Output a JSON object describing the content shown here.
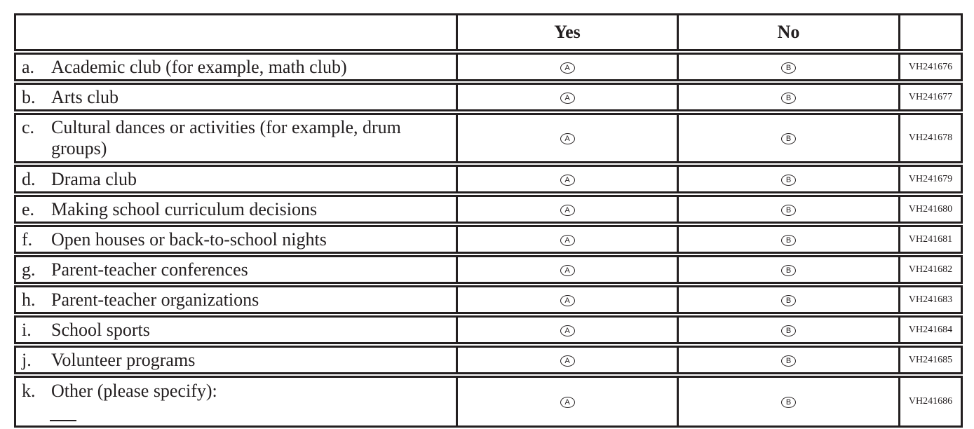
{
  "header": {
    "item": "",
    "yes": "Yes",
    "no": "No",
    "id": ""
  },
  "bubbles": {
    "yes": "A",
    "no": "B"
  },
  "rows": [
    {
      "letter": "a.",
      "label": "Academic club (for example, math club)",
      "id": "VH241676"
    },
    {
      "letter": "b.",
      "label": "Arts club",
      "id": "VH241677"
    },
    {
      "letter": "c.",
      "label": "Cultural dances or activities (for example, drum groups)",
      "id": "VH241678"
    },
    {
      "letter": "d.",
      "label": "Drama club",
      "id": "VH241679"
    },
    {
      "letter": "e.",
      "label": "Making school curriculum decisions",
      "id": "VH241680"
    },
    {
      "letter": "f.",
      "label": "Open houses or back-to-school nights",
      "id": "VH241681"
    },
    {
      "letter": "g.",
      "label": "Parent-teacher conferences",
      "id": "VH241682"
    },
    {
      "letter": "h.",
      "label": "Parent-teacher organizations",
      "id": "VH241683"
    },
    {
      "letter": "i.",
      "label": "School sports",
      "id": "VH241684"
    },
    {
      "letter": "j.",
      "label": "Volunteer programs",
      "id": "VH241685"
    },
    {
      "letter": "k.",
      "label": "Other (please specify):",
      "id": "VH241686"
    }
  ]
}
